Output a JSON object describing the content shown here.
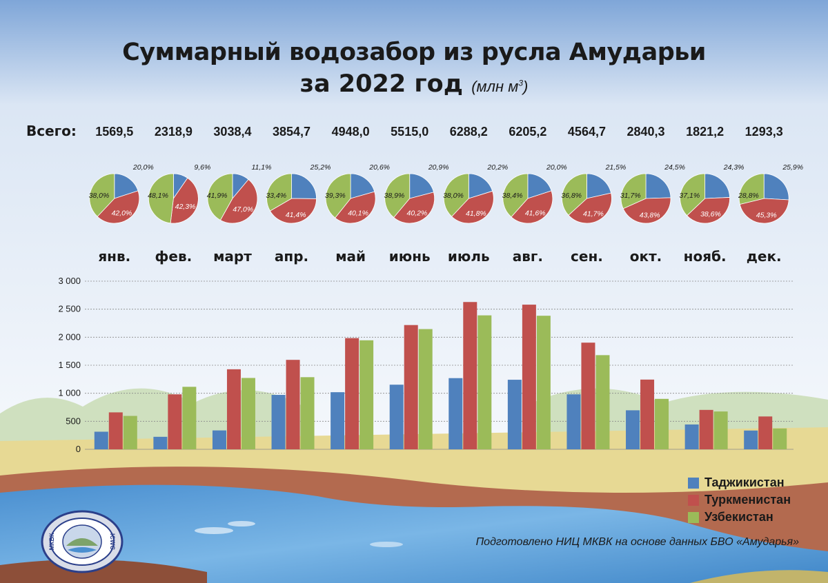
{
  "header": {
    "title_line1": "Суммарный водозабор из русла Амударьи",
    "title_line2": "за 2022 год",
    "unit": "(млн м",
    "unit_sup": "3",
    "unit_close": ")"
  },
  "totals_label": "Всего:",
  "source": "Подготовлено НИЦ МКВК на основе данных БВО «Амударья»",
  "logo": {
    "left_text": "МКВК",
    "right_text": "ICWC"
  },
  "colors": {
    "tajikistan": "#4f81bd",
    "turkmenistan": "#c0504d",
    "uzbekistan": "#9bbb59"
  },
  "chart_data": [
    {
      "type": "bar",
      "categories": [
        "янв.",
        "фев.",
        "март",
        "апр.",
        "май",
        "июнь",
        "июль",
        "авг.",
        "сен.",
        "окт.",
        "нояб.",
        "дек."
      ],
      "totals": [
        "1569,5",
        "2318,9",
        "3038,4",
        "3854,7",
        "4948,0",
        "5515,0",
        "6288,2",
        "6205,2",
        "4564,7",
        "2840,3",
        "1821,2",
        "1293,3"
      ],
      "series": [
        {
          "name": "Таджикистан",
          "values": [
            314,
            223,
            337,
            971,
            1019,
            1153,
            1270,
            1241,
            981,
            696,
            443,
            335
          ]
        },
        {
          "name": "Туркменистан",
          "values": [
            659,
            981,
            1428,
            1596,
            1984,
            2217,
            2628,
            2581,
            1903,
            1244,
            703,
            586
          ]
        },
        {
          "name": "Узбекистан",
          "values": [
            596,
            1115,
            1273,
            1287,
            1945,
            2145,
            2390,
            2383,
            1680,
            900,
            675,
            372
          ]
        }
      ],
      "ylim": [
        0,
        3000
      ],
      "yticks": [
        "0",
        "500",
        "1 000",
        "1 500",
        "2 000",
        "2 500",
        "3 000"
      ],
      "grid": true,
      "legend": "bottom-right"
    },
    {
      "type": "pie",
      "categories": [
        "янв.",
        "фев.",
        "март",
        "апр.",
        "май",
        "июнь",
        "июль",
        "авг.",
        "сен.",
        "окт.",
        "нояб.",
        "дек."
      ],
      "series_order": [
        "Таджикистан",
        "Туркменистан",
        "Узбекистан"
      ],
      "values": [
        [
          20.0,
          42.0,
          38.0
        ],
        [
          9.6,
          42.3,
          48.1
        ],
        [
          11.1,
          47.0,
          41.9
        ],
        [
          25.2,
          41.4,
          33.4
        ],
        [
          20.6,
          40.1,
          39.3
        ],
        [
          20.9,
          40.2,
          38.9
        ],
        [
          20.2,
          41.8,
          38.0
        ],
        [
          20.0,
          41.6,
          38.4
        ],
        [
          21.5,
          41.7,
          36.8
        ],
        [
          24.5,
          43.8,
          31.7
        ],
        [
          24.3,
          38.6,
          37.1
        ],
        [
          25.9,
          45.3,
          28.8
        ]
      ],
      "labels": [
        [
          "20,0%",
          "42,0%",
          "38,0%"
        ],
        [
          "9,6%",
          "42,3%",
          "48,1%"
        ],
        [
          "11,1%",
          "47,0%",
          "41,9%"
        ],
        [
          "25,2%",
          "41,4%",
          "33,4%"
        ],
        [
          "20,6%",
          "40,1%",
          "39,3%"
        ],
        [
          "20,9%",
          "40,2%",
          "38,9%"
        ],
        [
          "20,2%",
          "41,8%",
          "38,0%"
        ],
        [
          "20,0%",
          "41,6%",
          "38,4%"
        ],
        [
          "21,5%",
          "41,7%",
          "36,8%"
        ],
        [
          "24,5%",
          "43,8%",
          "31,7%"
        ],
        [
          "24,3%",
          "38,6%",
          "37,1%"
        ],
        [
          "25,9%",
          "45,3%",
          "28,8%"
        ]
      ]
    }
  ]
}
